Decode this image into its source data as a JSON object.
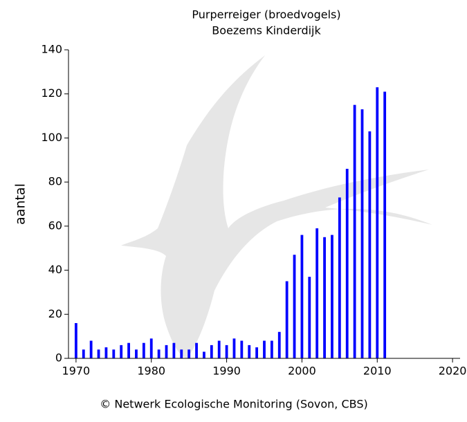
{
  "chart_data": {
    "type": "bar",
    "title": "Purperreiger (broedvogels)",
    "subtitle": "Boezems Kinderdijk",
    "y_label": "aantal",
    "footer": "© Netwerk Ecologische Monitoring (Sovon, CBS)",
    "color": "#0000ff",
    "x": [
      1970,
      1971,
      1972,
      1973,
      1974,
      1975,
      1976,
      1977,
      1978,
      1979,
      1980,
      1981,
      1982,
      1983,
      1984,
      1985,
      1986,
      1987,
      1988,
      1989,
      1990,
      1991,
      1992,
      1993,
      1994,
      1995,
      1996,
      1997,
      1998,
      1999,
      2000,
      2001,
      2002,
      2003,
      2004,
      2005,
      2006,
      2007,
      2008,
      2009,
      2010,
      2011
    ],
    "values": [
      16,
      4,
      8,
      4,
      5,
      4,
      6,
      7,
      4,
      7,
      9,
      4,
      6,
      7,
      4,
      4,
      7,
      3,
      6,
      8,
      6,
      9,
      8,
      6,
      5,
      8,
      8,
      12,
      35,
      47,
      56,
      37,
      59,
      55,
      56,
      73,
      86,
      115,
      113,
      103,
      123,
      121
    ],
    "xlim": [
      1969,
      2021
    ],
    "xticks": [
      1970,
      1980,
      1990,
      2000,
      2010,
      2020
    ],
    "ylim": [
      0,
      140
    ],
    "yticks": [
      0,
      20,
      40,
      60,
      80,
      100,
      120,
      140
    ]
  }
}
